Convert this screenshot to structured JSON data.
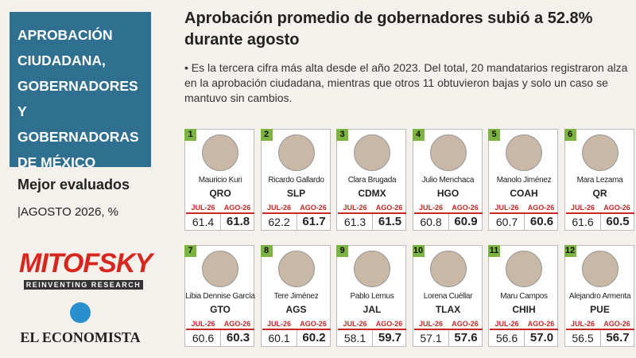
{
  "sidebar": {
    "title": "APROBACIÓN CIUDADANA, GOBERNADORES Y GOBERNADORAS DE MÉXICO",
    "subtitle": "Mejor evaluados",
    "period": "|AGOSTO 2026, %",
    "source": "MITOFSKY",
    "source_tagline": "REINVENTING RESEARCH",
    "publisher": "EL ECONOMISTA"
  },
  "header": {
    "title": "Aprobación promedio de gobernadores subió a 52.8% durante agosto",
    "summary": "• Es la tercera cifra más alta desde el año 2023. Del total, 20 mandatarios registraron alza en la aprobación ciudadana, mientras que otros 11 obtuvieron bajas y solo un caso se mantuvo sin cambios."
  },
  "columns": [
    "JUL-26",
    "AGO-26"
  ],
  "governors": [
    {
      "rank": 1,
      "name": "Mauricio Kuri",
      "state": "QRO",
      "jul": "61.4",
      "ago": "61.8"
    },
    {
      "rank": 2,
      "name": "Ricardo Gallardo",
      "state": "SLP",
      "jul": "62.2",
      "ago": "61.7"
    },
    {
      "rank": 3,
      "name": "Clara Brugada",
      "state": "CDMX",
      "jul": "61.3",
      "ago": "61.5"
    },
    {
      "rank": 4,
      "name": "Julio Menchaca",
      "state": "HGO",
      "jul": "60.8",
      "ago": "60.9"
    },
    {
      "rank": 5,
      "name": "Manolo Jiménez",
      "state": "COAH",
      "jul": "60.7",
      "ago": "60.6"
    },
    {
      "rank": 6,
      "name": "Mara Lezama",
      "state": "QR",
      "jul": "61.6",
      "ago": "60.5"
    },
    {
      "rank": 7,
      "name": "Libia Dennise García",
      "state": "GTO",
      "jul": "60.6",
      "ago": "60.3"
    },
    {
      "rank": 8,
      "name": "Tere Jiménez",
      "state": "AGS",
      "jul": "60.1",
      "ago": "60.2"
    },
    {
      "rank": 9,
      "name": "Pablo Lemus",
      "state": "JAL",
      "jul": "58.1",
      "ago": "59.7"
    },
    {
      "rank": 10,
      "name": "Lorena Cuéllar",
      "state": "TLAX",
      "jul": "57.1",
      "ago": "57.6"
    },
    {
      "rank": 11,
      "name": "Maru Campos",
      "state": "CHIH",
      "jul": "56.6",
      "ago": "57.0"
    },
    {
      "rank": 12,
      "name": "Alejandro Armenta",
      "state": "PUE",
      "jul": "56.5",
      "ago": "56.7"
    }
  ]
}
